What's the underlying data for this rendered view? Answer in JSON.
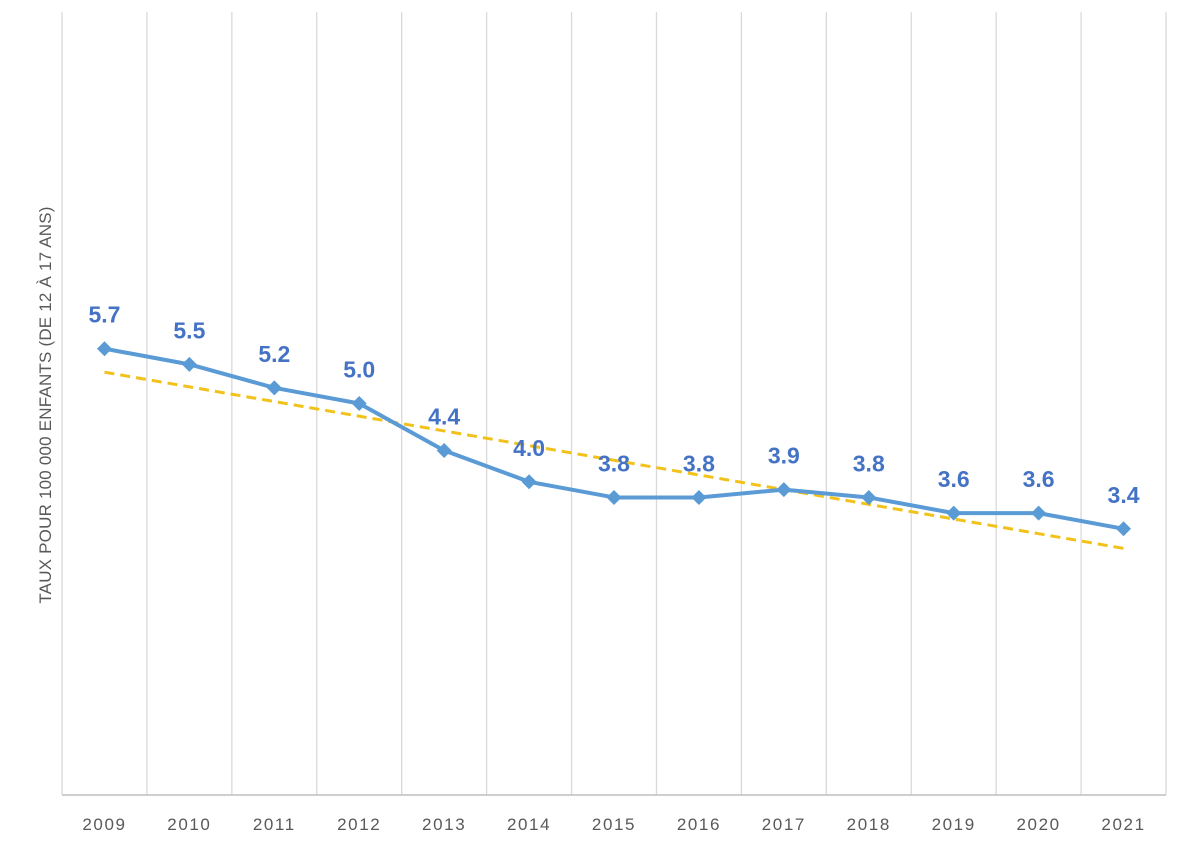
{
  "chart_data": {
    "type": "line",
    "title": "",
    "xlabel": "",
    "ylabel": "TAUX POUR 100 000 ENFANTS (DE 12 À 17 ANS)",
    "categories": [
      "2009",
      "2010",
      "2011",
      "2012",
      "2013",
      "2014",
      "2015",
      "2016",
      "2017",
      "2018",
      "2019",
      "2020",
      "2021"
    ],
    "series": [
      {
        "values": [
          5.7,
          5.5,
          5.2,
          5.0,
          4.4,
          4.0,
          3.8,
          3.8,
          3.9,
          3.8,
          3.6,
          3.6,
          3.4
        ],
        "data_labels": [
          "5.7",
          "5.5",
          "5.2",
          "5.0",
          "4.4",
          "4.0",
          "3.8",
          "3.8",
          "3.9",
          "3.8",
          "3.6",
          "3.6",
          "3.4"
        ],
        "color": "#5B9BD5",
        "label_color": "#4472C4",
        "marker": "diamond"
      }
    ],
    "trendline": {
      "type": "linear",
      "style": "dashed",
      "color": "#F2C21B",
      "start": 5.4,
      "end": 3.15
    },
    "ylim": [
      0,
      10
    ],
    "grid": "vertical",
    "legend": "none"
  }
}
